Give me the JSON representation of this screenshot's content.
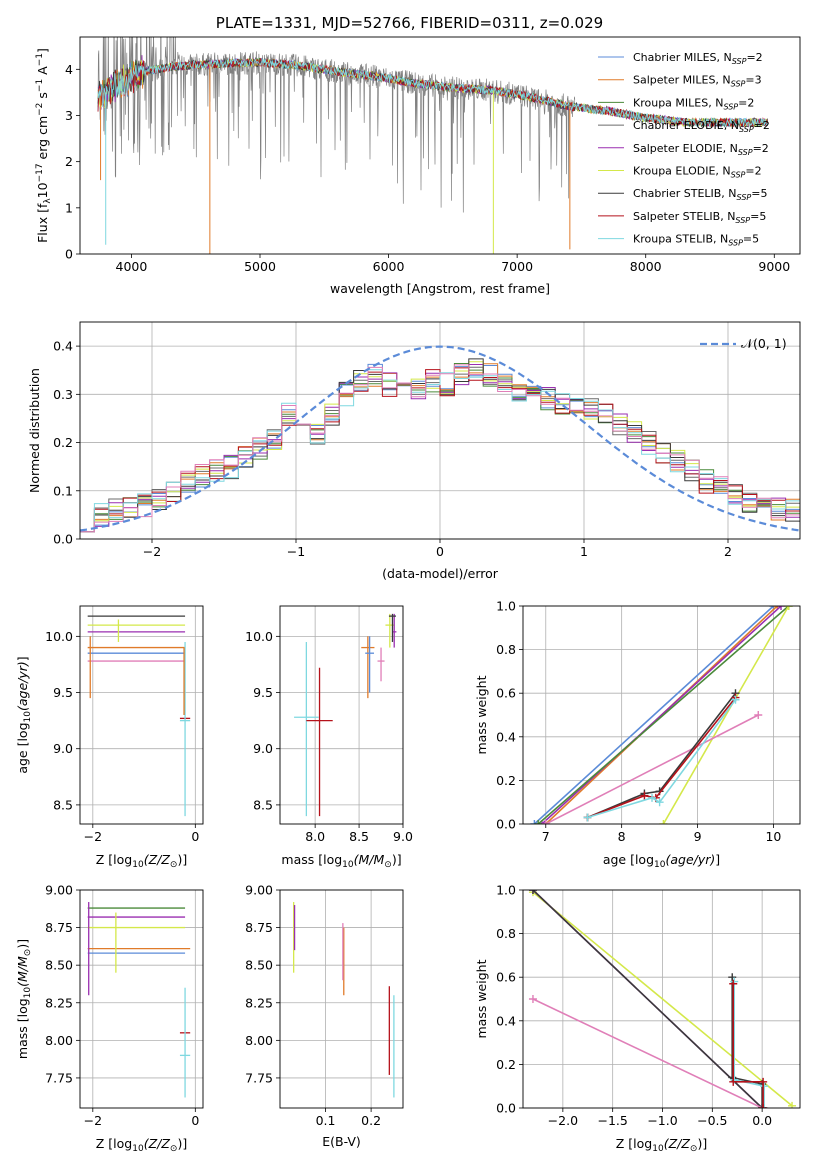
{
  "title": "PLATE=1331, MJD=52766, FIBERID=0311, z=0.029",
  "colors": {
    "chabrier_miles": "#5b8bd8",
    "salpeter_miles": "#e07b2a",
    "kroupa_miles": "#4a8a3a",
    "chabrier_elodie": "#6b6b6b",
    "salpeter_elodie": "#9a2fb0",
    "kroupa_elodie": "#d4e84a",
    "chabrier_stelib": "#3a3a3a",
    "salpeter_stelib": "#b5121b",
    "kroupa_stelib": "#7fd8e0",
    "pink": "#e07fb8",
    "gray_data": "#808080",
    "gauss": "#5b8bd8"
  },
  "legend_spectrum": [
    "Chabrier MILES, N$_{SSP}$=2",
    "Salpeter MILES, N$_{SSP}$=3",
    "Kroupa MILES, N$_{SSP}$=2",
    "Chabrier ELODIE, N$_{SSP}$=2",
    "Salpeter ELODIE, N$_{SSP}$=2",
    "Kroupa ELODIE, N$_{SSP}$=2",
    "Chabrier STELIB, N$_{SSP}$=5",
    "Salpeter STELIB, N$_{SSP}$=5",
    "Kroupa STELIB, N$_{SSP}$=5"
  ],
  "legend_text": [
    [
      "Chabrier MILES, N",
      "SSP",
      "=2"
    ],
    [
      "Salpeter MILES, N",
      "SSP",
      "=3"
    ],
    [
      "Kroupa MILES, N",
      "SSP",
      "=2"
    ],
    [
      "Chabrier ELODIE, N",
      "SSP",
      "=2"
    ],
    [
      "Salpeter ELODIE, N",
      "SSP",
      "=2"
    ],
    [
      "Kroupa ELODIE, N",
      "SSP",
      "=2"
    ],
    [
      "Chabrier STELIB, N",
      "SSP",
      "=5"
    ],
    [
      "Salpeter STELIB, N",
      "SSP",
      "=5"
    ],
    [
      "Kroupa STELIB, N",
      "SSP",
      "=5"
    ]
  ],
  "chart_data": [
    {
      "type": "line",
      "panel": "spectrum",
      "xlabel": "wavelength [Angstrom, rest frame]",
      "ylabel": "Flux [f_λ 10^-17 erg cm^-2 s^-1 A^-1]",
      "xlim": [
        3600,
        9200
      ],
      "ylim": [
        0,
        4.7
      ],
      "xticks": [
        4000,
        5000,
        6000,
        7000,
        8000,
        9000
      ],
      "yticks": [
        0,
        1,
        2,
        3,
        4
      ],
      "continuum_model": {
        "x": [
          3750,
          3900,
          4100,
          4300,
          4500,
          4700,
          5000,
          5300,
          5600,
          5900,
          6200,
          6500,
          6800,
          7100,
          7400,
          7700,
          8000,
          8300,
          8600,
          8900
        ],
        "y": [
          3.4,
          3.7,
          3.95,
          4.05,
          4.1,
          4.12,
          4.15,
          4.08,
          3.95,
          3.85,
          3.7,
          3.6,
          3.55,
          3.4,
          3.2,
          3.1,
          2.95,
          2.85,
          2.85,
          2.85
        ]
      },
      "grid": false,
      "legend": "top-right"
    },
    {
      "type": "line",
      "panel": "residual_histogram",
      "xlabel": "(data-model)/error",
      "ylabel": "Normed distribution",
      "xlim": [
        -2.5,
        2.5
      ],
      "ylim": [
        0,
        0.45
      ],
      "xticks": [
        -2,
        -1,
        0,
        1,
        2
      ],
      "yticks": [
        0.0,
        0.1,
        0.2,
        0.3,
        0.4
      ],
      "gauss_label": "𝒩(0, 1)",
      "reference_curve": "normal(0,1)",
      "hist_x": [
        -2.5,
        -2.4,
        -2.3,
        -2.2,
        -2.1,
        -2.0,
        -1.9,
        -1.8,
        -1.7,
        -1.6,
        -1.5,
        -1.4,
        -1.3,
        -1.2,
        -1.1,
        -1.0,
        -0.9,
        -0.8,
        -0.7,
        -0.6,
        -0.5,
        -0.4,
        -0.3,
        -0.2,
        -0.1,
        0.0,
        0.1,
        0.2,
        0.3,
        0.4,
        0.5,
        0.6,
        0.7,
        0.8,
        0.9,
        1.0,
        1.1,
        1.2,
        1.3,
        1.4,
        1.5,
        1.6,
        1.7,
        1.8,
        1.9,
        2.0,
        2.1,
        2.2,
        2.3,
        2.4
      ],
      "hist_y": [
        0.04,
        0.05,
        0.06,
        0.07,
        0.07,
        0.08,
        0.1,
        0.12,
        0.13,
        0.14,
        0.15,
        0.17,
        0.19,
        0.21,
        0.26,
        0.24,
        0.22,
        0.26,
        0.3,
        0.33,
        0.34,
        0.32,
        0.33,
        0.31,
        0.33,
        0.32,
        0.34,
        0.35,
        0.34,
        0.33,
        0.31,
        0.31,
        0.29,
        0.28,
        0.27,
        0.27,
        0.26,
        0.24,
        0.22,
        0.2,
        0.18,
        0.16,
        0.14,
        0.12,
        0.11,
        0.09,
        0.08,
        0.07,
        0.06,
        0.06
      ],
      "grid": true,
      "legend": "top-right"
    },
    {
      "type": "scatter",
      "panel": "age_vs_Z",
      "xlabel": "Z [log10(Z/Z_sun)]",
      "ylabel": "age [log10(age/yr)]",
      "xlim": [
        -2.25,
        0.15
      ],
      "ylim": [
        8.33,
        10.27
      ],
      "xticks": [
        -2,
        0
      ],
      "yticks": [
        8.5,
        9.0,
        9.5,
        10.0
      ],
      "hlines": [
        {
          "y": 10.18,
          "x0": -2.1,
          "x1": -0.2,
          "series": "chabrier_stelib"
        },
        {
          "y": 10.1,
          "x0": -2.1,
          "x1": -0.2,
          "series": "kroupa_elodie"
        },
        {
          "y": 10.04,
          "x0": -2.1,
          "x1": -0.2,
          "series": "salpeter_elodie"
        },
        {
          "y": 9.9,
          "x0": -2.1,
          "x1": -0.2,
          "series": "salpeter_miles"
        },
        {
          "y": 9.85,
          "x0": -2.1,
          "x1": -0.2,
          "series": "chabrier_miles"
        },
        {
          "y": 9.78,
          "x0": -2.1,
          "x1": -0.2,
          "series": "pink"
        },
        {
          "y": 9.27,
          "x0": -0.3,
          "x1": -0.1,
          "series": "salpeter_stelib"
        },
        {
          "y": 9.25,
          "x0": -0.3,
          "x1": -0.1,
          "series": "kroupa_stelib"
        }
      ],
      "vlines": [
        {
          "x": -2.05,
          "y0": 9.45,
          "y1": 10.0,
          "series": "salpeter_miles"
        },
        {
          "x": -0.2,
          "y0": 8.4,
          "y1": 9.95,
          "series": "kroupa_stelib"
        },
        {
          "x": -0.22,
          "y0": 9.3,
          "y1": 9.9,
          "series": "salpeter_miles"
        },
        {
          "x": -1.5,
          "y0": 9.95,
          "y1": 10.15,
          "series": "kroupa_elodie"
        }
      ],
      "grid": true
    },
    {
      "type": "scatter",
      "panel": "age_vs_mass",
      "xlabel": "mass [log10(M/M_sun)]",
      "ylabel": "",
      "xlim": [
        7.6,
        9.0
      ],
      "ylim": [
        8.33,
        10.27
      ],
      "xticks": [
        8.0,
        8.5,
        9.0
      ],
      "yticks": [
        8.5,
        9.0,
        9.5,
        10.0
      ],
      "crosses": [
        {
          "x": 7.9,
          "y": 9.28,
          "dx": 0.28,
          "dy0": 8.4,
          "dy1": 9.95,
          "series": "kroupa_stelib"
        },
        {
          "x": 8.05,
          "y": 9.25,
          "dx": 0.3,
          "dy0": 8.4,
          "dy1": 9.72,
          "series": "salpeter_stelib"
        },
        {
          "x": 8.6,
          "y": 9.9,
          "dx": 0.15,
          "dy0": 9.45,
          "dy1": 10.0,
          "series": "salpeter_miles"
        },
        {
          "x": 8.62,
          "y": 9.85,
          "dx": 0.1,
          "dy0": 9.5,
          "dy1": 10.0,
          "series": "chabrier_miles"
        },
        {
          "x": 8.85,
          "y": 10.1,
          "dx": 0.1,
          "dy0": 9.9,
          "dy1": 10.2,
          "series": "kroupa_elodie"
        },
        {
          "x": 8.9,
          "y": 10.04,
          "dx": 0.05,
          "dy0": 9.9,
          "dy1": 10.2,
          "series": "salpeter_elodie"
        },
        {
          "x": 8.88,
          "y": 10.18,
          "dx": 0.08,
          "dy0": 9.95,
          "dy1": 10.2,
          "series": "chabrier_stelib"
        },
        {
          "x": 8.75,
          "y": 9.78,
          "dx": 0.08,
          "dy0": 9.6,
          "dy1": 9.9,
          "series": "pink"
        }
      ],
      "grid": true
    },
    {
      "type": "line",
      "panel": "mass_weight_vs_age",
      "xlabel": "age [log10(age/yr)]",
      "ylabel": "mass weight",
      "xlim": [
        6.7,
        10.35
      ],
      "ylim": [
        0,
        1.0
      ],
      "xticks": [
        7,
        8,
        9,
        10
      ],
      "yticks": [
        0.0,
        0.2,
        0.4,
        0.6,
        0.8,
        1.0
      ],
      "series": [
        {
          "name": "chabrier_miles",
          "x": [
            6.85,
            10.0
          ],
          "y": [
            0,
            1.0
          ]
        },
        {
          "name": "salpeter_miles",
          "x": [
            7.0,
            10.05
          ],
          "y": [
            0,
            1.0
          ]
        },
        {
          "name": "salpeter_elodie",
          "x": [
            6.95,
            10.1
          ],
          "y": [
            0,
            1.0
          ]
        },
        {
          "name": "kroupa_miles",
          "x": [
            6.9,
            10.2
          ],
          "y": [
            0,
            1.0
          ]
        },
        {
          "name": "kroupa_elodie",
          "x": [
            8.55,
            10.2
          ],
          "y": [
            0,
            1.0
          ]
        },
        {
          "name": "pink",
          "x": [
            7.0,
            9.8
          ],
          "y": [
            0,
            0.5
          ]
        },
        {
          "name": "chabrier_stelib",
          "x": [
            7.55,
            8.3,
            8.5,
            9.5
          ],
          "y": [
            0.03,
            0.14,
            0.15,
            0.6
          ]
        },
        {
          "name": "salpeter_stelib",
          "x": [
            7.55,
            8.3,
            8.45,
            9.5
          ],
          "y": [
            0.03,
            0.13,
            0.12,
            0.58
          ]
        },
        {
          "name": "kroupa_stelib",
          "x": [
            7.55,
            8.4,
            8.5,
            9.5
          ],
          "y": [
            0.03,
            0.12,
            0.1,
            0.57
          ]
        }
      ],
      "grid": true
    },
    {
      "type": "scatter",
      "panel": "mass_vs_Z",
      "xlabel": "Z [log10(Z/Z_sun)]",
      "ylabel": "mass [log10(M/M_sun)]",
      "xlim": [
        -2.25,
        0.15
      ],
      "ylim": [
        7.55,
        9.0
      ],
      "xticks": [
        -2,
        0
      ],
      "yticks": [
        7.75,
        8.0,
        8.25,
        8.5,
        8.75,
        9.0
      ],
      "hlines": [
        {
          "y": 8.88,
          "x0": -2.1,
          "x1": -0.2,
          "series": "kroupa_miles"
        },
        {
          "y": 8.82,
          "x0": -2.1,
          "x1": -0.2,
          "series": "salpeter_elodie"
        },
        {
          "y": 8.75,
          "x0": -2.1,
          "x1": -0.2,
          "series": "kroupa_elodie"
        },
        {
          "y": 8.61,
          "x0": -2.1,
          "x1": -0.1,
          "series": "salpeter_miles"
        },
        {
          "y": 8.58,
          "x0": -2.1,
          "x1": -0.2,
          "series": "chabrier_miles"
        },
        {
          "y": 8.05,
          "x0": -0.3,
          "x1": -0.1,
          "series": "salpeter_stelib"
        },
        {
          "y": 7.9,
          "x0": -0.3,
          "x1": -0.1,
          "series": "kroupa_stelib"
        }
      ],
      "vlines": [
        {
          "x": -2.08,
          "y0": 8.3,
          "y1": 8.92,
          "series": "salpeter_elodie"
        },
        {
          "x": -1.55,
          "y0": 8.45,
          "y1": 8.85,
          "series": "kroupa_elodie"
        },
        {
          "x": -0.2,
          "y0": 7.62,
          "y1": 8.35,
          "series": "kroupa_stelib"
        }
      ],
      "grid": true
    },
    {
      "type": "scatter",
      "panel": "mass_vs_EBV",
      "xlabel": "E(B-V)",
      "ylabel": "",
      "xlim": [
        0.0,
        0.27
      ],
      "ylim": [
        7.55,
        9.0
      ],
      "xticks": [
        0.1,
        0.2
      ],
      "yticks": [
        7.75,
        8.0,
        8.25,
        8.5,
        8.75,
        9.0
      ],
      "vlines": [
        {
          "x": 0.03,
          "y0": 8.45,
          "y1": 8.92,
          "series": "kroupa_elodie"
        },
        {
          "x": 0.032,
          "y0": 8.6,
          "y1": 8.9,
          "series": "salpeter_elodie"
        },
        {
          "x": 0.14,
          "y0": 8.3,
          "y1": 8.75,
          "series": "salpeter_miles"
        },
        {
          "x": 0.138,
          "y0": 8.4,
          "y1": 8.78,
          "series": "pink"
        },
        {
          "x": 0.24,
          "y0": 7.77,
          "y1": 8.36,
          "series": "salpeter_stelib"
        },
        {
          "x": 0.25,
          "y0": 7.62,
          "y1": 8.3,
          "series": "kroupa_stelib"
        }
      ],
      "grid": true
    },
    {
      "type": "line",
      "panel": "mass_weight_vs_Z",
      "xlabel": "Z [log10(Z/Z_sun)]",
      "ylabel": "mass weight",
      "xlim": [
        -2.4,
        0.38
      ],
      "ylim": [
        0,
        1.0
      ],
      "xticks": [
        -2.0,
        -1.5,
        -1.0,
        -0.5,
        0.0
      ],
      "yticks": [
        0.0,
        0.2,
        0.4,
        0.6,
        0.8,
        1.0
      ],
      "series": [
        {
          "name": "kroupa_elodie",
          "x": [
            -2.3,
            0.3
          ],
          "y": [
            0.99,
            0.01
          ]
        },
        {
          "name": "salpeter_elodie",
          "x": [
            -2.3,
            0.0
          ],
          "y": [
            1.0,
            0.0
          ]
        },
        {
          "name": "chabrier_stelib",
          "x": [
            -2.3,
            0.0
          ],
          "y": [
            1.0,
            0.0
          ]
        },
        {
          "name": "pink",
          "x": [
            -2.3,
            0.0
          ],
          "y": [
            0.5,
            0.0
          ]
        },
        {
          "name": "chabrier_stelib",
          "x": [
            -0.3,
            -0.3,
            0.0,
            0.0
          ],
          "y": [
            0.6,
            0.14,
            0.11,
            0.0
          ]
        },
        {
          "name": "kroupa_stelib",
          "x": [
            -0.28,
            -0.28,
            0.02,
            0.02
          ],
          "y": [
            0.58,
            0.13,
            0.1,
            0.0
          ]
        },
        {
          "name": "salpeter_stelib",
          "x": [
            -0.29,
            -0.29,
            0.01,
            0.01
          ],
          "y": [
            0.57,
            0.12,
            0.12,
            0.0
          ]
        }
      ],
      "grid": true
    }
  ],
  "axis_labels": {
    "spectrum_x": "wavelength [Angstrom, rest frame]",
    "spectrum_y_1": "Flux [f",
    "spectrum_y_sub": "λ",
    "spectrum_y_2": "10",
    "spectrum_y_sup1": "−17",
    "spectrum_y_3": " erg cm",
    "spectrum_y_sup2": "−2",
    "spectrum_y_4": " s",
    "spectrum_y_sup3": "−1",
    "spectrum_y_5": " A",
    "spectrum_y_sup4": "−1",
    "spectrum_y_6": "]",
    "hist_x": "(data-model)/error",
    "hist_y": "Normed distribution",
    "age_y": "age  [log",
    "age_y_sub": "10",
    "age_y_it": "(age/yr)",
    "age_y_end": "]",
    "Z_x": "Z [log",
    "Z_x_sub": "10",
    "Z_x_it": "(Z/Z",
    "Z_x_sun": "⊙",
    "Z_x_end": ")]",
    "mass_x": "mass [log",
    "mass_x_sub": "10",
    "mass_x_it": "(M/M",
    "mass_x_sun": "⊙",
    "mass_x_end": ")]",
    "mw_y": "mass weight",
    "age_x": "age  [log",
    "age_x_sub": "10",
    "age_x_it": "(age/yr)",
    "age_x_end": "]",
    "mass_y": "mass [log",
    "mass_y_sub": "10",
    "mass_y_it": "(M/M",
    "mass_y_sun": "⊙",
    "mass_y_end": ")]",
    "ebv_x": "E(B-V)",
    "gauss_label": "𝒩(0, 1)"
  }
}
